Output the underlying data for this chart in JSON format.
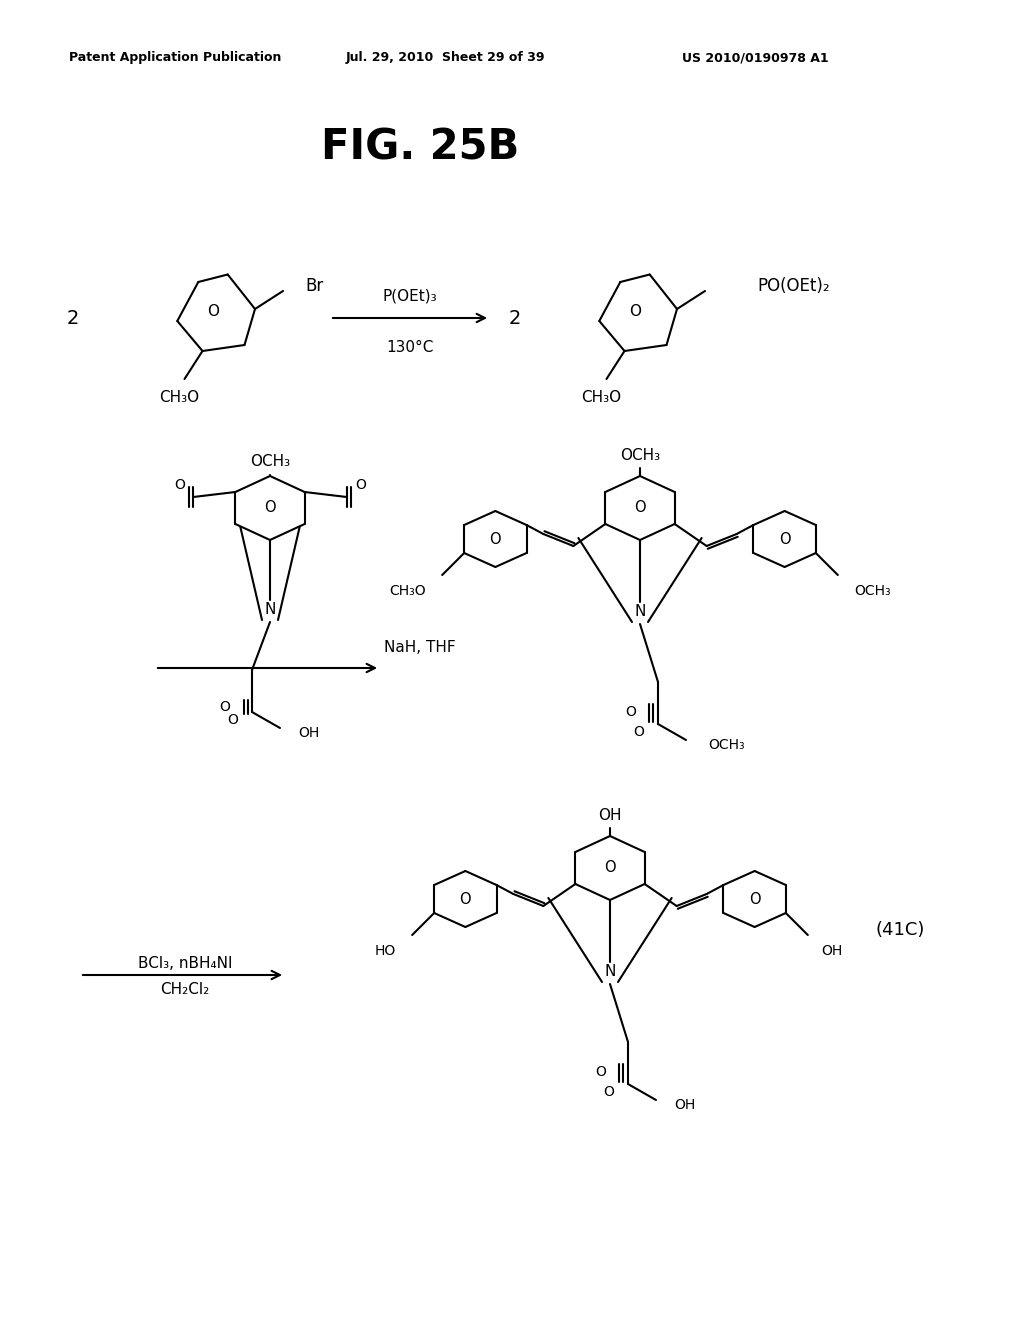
{
  "title": "FIG. 25B",
  "header_left": "Patent Application Publication",
  "header_mid": "Jul. 29, 2010  Sheet 29 of 39",
  "header_right": "US 2010/0190978 A1",
  "bg_color": "#ffffff",
  "text_color": "#000000",
  "fig_label": "(41C)"
}
